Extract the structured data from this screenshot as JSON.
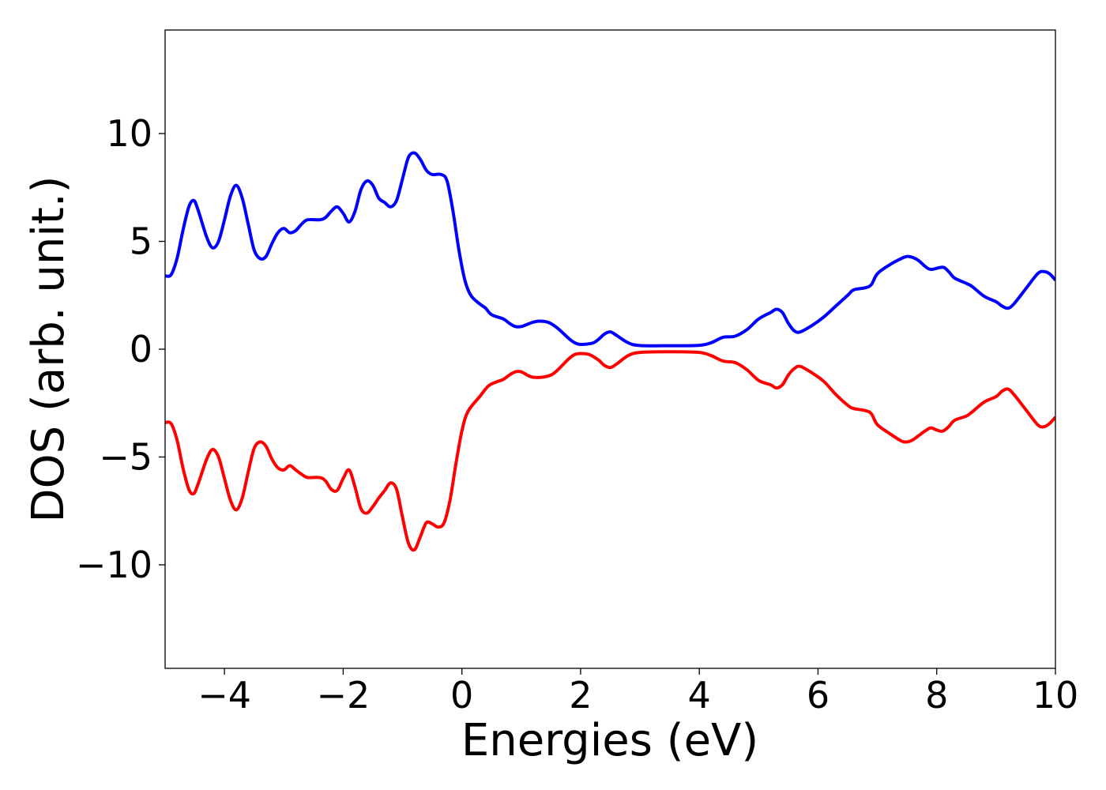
{
  "chart_data": {
    "type": "line",
    "title": "",
    "xlabel": "Energies (eV)",
    "ylabel": "DOS (arb. unit.)",
    "xlim": [
      -5,
      10
    ],
    "ylim": [
      -14.8,
      14.8
    ],
    "xticks": [
      -4,
      -2,
      0,
      2,
      4,
      6,
      8,
      10
    ],
    "xtick_labels": [
      "−4",
      "−2",
      "0",
      "2",
      "4",
      "6",
      "8",
      "10"
    ],
    "yticks": [
      10,
      5,
      0,
      -5,
      -10
    ],
    "ytick_labels": [
      "10",
      "5",
      "0",
      "−5",
      "−10"
    ],
    "grid": false,
    "legend": "none",
    "series": [
      {
        "color": "#0000ff",
        "points": [
          [
            -5.0,
            3.4
          ],
          [
            -4.9,
            3.45
          ],
          [
            -4.8,
            4.2
          ],
          [
            -4.7,
            5.5
          ],
          [
            -4.6,
            6.6
          ],
          [
            -4.52,
            6.9
          ],
          [
            -4.45,
            6.5
          ],
          [
            -4.3,
            5.2
          ],
          [
            -4.2,
            4.7
          ],
          [
            -4.1,
            5.0
          ],
          [
            -4.0,
            6.0
          ],
          [
            -3.9,
            7.1
          ],
          [
            -3.8,
            7.6
          ],
          [
            -3.7,
            7.0
          ],
          [
            -3.6,
            5.8
          ],
          [
            -3.5,
            4.6
          ],
          [
            -3.4,
            4.2
          ],
          [
            -3.3,
            4.3
          ],
          [
            -3.2,
            4.9
          ],
          [
            -3.1,
            5.4
          ],
          [
            -3.0,
            5.6
          ],
          [
            -2.9,
            5.4
          ],
          [
            -2.8,
            5.5
          ],
          [
            -2.7,
            5.8
          ],
          [
            -2.6,
            6.0
          ],
          [
            -2.4,
            6.0
          ],
          [
            -2.3,
            6.1
          ],
          [
            -2.2,
            6.4
          ],
          [
            -2.1,
            6.6
          ],
          [
            -2.0,
            6.3
          ],
          [
            -1.9,
            5.9
          ],
          [
            -1.8,
            6.4
          ],
          [
            -1.7,
            7.4
          ],
          [
            -1.6,
            7.8
          ],
          [
            -1.5,
            7.6
          ],
          [
            -1.4,
            7.0
          ],
          [
            -1.3,
            6.8
          ],
          [
            -1.2,
            6.6
          ],
          [
            -1.1,
            6.9
          ],
          [
            -1.0,
            7.9
          ],
          [
            -0.9,
            8.9
          ],
          [
            -0.8,
            9.1
          ],
          [
            -0.7,
            8.8
          ],
          [
            -0.6,
            8.3
          ],
          [
            -0.5,
            8.1
          ],
          [
            -0.35,
            8.1
          ],
          [
            -0.25,
            7.8
          ],
          [
            -0.15,
            6.4
          ],
          [
            -0.05,
            4.6
          ],
          [
            0.05,
            3.2
          ],
          [
            0.15,
            2.5
          ],
          [
            0.3,
            2.1
          ],
          [
            0.4,
            1.9
          ],
          [
            0.5,
            1.6
          ],
          [
            0.7,
            1.4
          ],
          [
            0.8,
            1.2
          ],
          [
            0.9,
            1.05
          ],
          [
            1.0,
            1.05
          ],
          [
            1.1,
            1.15
          ],
          [
            1.2,
            1.25
          ],
          [
            1.3,
            1.3
          ],
          [
            1.45,
            1.25
          ],
          [
            1.6,
            1.0
          ],
          [
            1.8,
            0.5
          ],
          [
            1.9,
            0.3
          ],
          [
            2.0,
            0.22
          ],
          [
            2.2,
            0.28
          ],
          [
            2.3,
            0.45
          ],
          [
            2.4,
            0.7
          ],
          [
            2.5,
            0.8
          ],
          [
            2.6,
            0.65
          ],
          [
            2.8,
            0.3
          ],
          [
            3.0,
            0.17
          ],
          [
            3.5,
            0.16
          ],
          [
            4.0,
            0.18
          ],
          [
            4.2,
            0.3
          ],
          [
            4.4,
            0.55
          ],
          [
            4.6,
            0.6
          ],
          [
            4.8,
            0.9
          ],
          [
            5.0,
            1.4
          ],
          [
            5.2,
            1.7
          ],
          [
            5.3,
            1.85
          ],
          [
            5.4,
            1.7
          ],
          [
            5.5,
            1.2
          ],
          [
            5.6,
            0.85
          ],
          [
            5.7,
            0.8
          ],
          [
            5.9,
            1.1
          ],
          [
            6.1,
            1.5
          ],
          [
            6.3,
            2.0
          ],
          [
            6.5,
            2.5
          ],
          [
            6.6,
            2.75
          ],
          [
            6.8,
            2.85
          ],
          [
            6.9,
            3.0
          ],
          [
            7.0,
            3.5
          ],
          [
            7.2,
            3.9
          ],
          [
            7.4,
            4.2
          ],
          [
            7.5,
            4.3
          ],
          [
            7.6,
            4.25
          ],
          [
            7.7,
            4.1
          ],
          [
            7.8,
            3.85
          ],
          [
            7.9,
            3.7
          ],
          [
            8.1,
            3.8
          ],
          [
            8.2,
            3.6
          ],
          [
            8.3,
            3.3
          ],
          [
            8.5,
            3.05
          ],
          [
            8.6,
            2.9
          ],
          [
            8.8,
            2.45
          ],
          [
            9.0,
            2.2
          ],
          [
            9.1,
            2.0
          ],
          [
            9.2,
            1.9
          ],
          [
            9.3,
            2.1
          ],
          [
            9.5,
            2.8
          ],
          [
            9.7,
            3.5
          ],
          [
            9.8,
            3.6
          ],
          [
            9.9,
            3.5
          ],
          [
            10.0,
            3.2
          ]
        ]
      },
      {
        "color": "#ff0000",
        "points": [
          [
            -5.0,
            -3.4
          ],
          [
            -4.9,
            -3.45
          ],
          [
            -4.8,
            -4.2
          ],
          [
            -4.7,
            -5.5
          ],
          [
            -4.6,
            -6.5
          ],
          [
            -4.52,
            -6.7
          ],
          [
            -4.45,
            -6.3
          ],
          [
            -4.3,
            -5.1
          ],
          [
            -4.2,
            -4.65
          ],
          [
            -4.1,
            -5.0
          ],
          [
            -4.0,
            -6.0
          ],
          [
            -3.9,
            -7.0
          ],
          [
            -3.8,
            -7.45
          ],
          [
            -3.7,
            -6.9
          ],
          [
            -3.6,
            -5.7
          ],
          [
            -3.5,
            -4.6
          ],
          [
            -3.4,
            -4.3
          ],
          [
            -3.3,
            -4.5
          ],
          [
            -3.2,
            -5.1
          ],
          [
            -3.1,
            -5.5
          ],
          [
            -3.0,
            -5.6
          ],
          [
            -2.9,
            -5.4
          ],
          [
            -2.8,
            -5.6
          ],
          [
            -2.7,
            -5.8
          ],
          [
            -2.6,
            -5.95
          ],
          [
            -2.4,
            -5.95
          ],
          [
            -2.3,
            -6.1
          ],
          [
            -2.2,
            -6.5
          ],
          [
            -2.1,
            -6.55
          ],
          [
            -2.0,
            -6.0
          ],
          [
            -1.9,
            -5.6
          ],
          [
            -1.8,
            -6.4
          ],
          [
            -1.7,
            -7.4
          ],
          [
            -1.6,
            -7.6
          ],
          [
            -1.5,
            -7.3
          ],
          [
            -1.4,
            -6.9
          ],
          [
            -1.3,
            -6.55
          ],
          [
            -1.2,
            -6.2
          ],
          [
            -1.1,
            -6.5
          ],
          [
            -1.0,
            -7.8
          ],
          [
            -0.9,
            -9.0
          ],
          [
            -0.8,
            -9.3
          ],
          [
            -0.7,
            -8.7
          ],
          [
            -0.6,
            -8.05
          ],
          [
            -0.5,
            -8.1
          ],
          [
            -0.4,
            -8.25
          ],
          [
            -0.3,
            -8.05
          ],
          [
            -0.2,
            -7.0
          ],
          [
            -0.1,
            -5.3
          ],
          [
            0.0,
            -3.8
          ],
          [
            0.1,
            -2.9
          ],
          [
            0.3,
            -2.2
          ],
          [
            0.45,
            -1.7
          ],
          [
            0.6,
            -1.5
          ],
          [
            0.7,
            -1.4
          ],
          [
            0.8,
            -1.2
          ],
          [
            0.9,
            -1.05
          ],
          [
            1.0,
            -1.05
          ],
          [
            1.1,
            -1.2
          ],
          [
            1.2,
            -1.3
          ],
          [
            1.35,
            -1.3
          ],
          [
            1.5,
            -1.2
          ],
          [
            1.6,
            -1.0
          ],
          [
            1.8,
            -0.45
          ],
          [
            1.9,
            -0.25
          ],
          [
            2.0,
            -0.2
          ],
          [
            2.15,
            -0.25
          ],
          [
            2.3,
            -0.5
          ],
          [
            2.4,
            -0.75
          ],
          [
            2.5,
            -0.85
          ],
          [
            2.6,
            -0.7
          ],
          [
            2.8,
            -0.3
          ],
          [
            3.0,
            -0.15
          ],
          [
            3.5,
            -0.12
          ],
          [
            4.0,
            -0.15
          ],
          [
            4.2,
            -0.3
          ],
          [
            4.4,
            -0.55
          ],
          [
            4.6,
            -0.62
          ],
          [
            4.8,
            -0.95
          ],
          [
            5.0,
            -1.45
          ],
          [
            5.2,
            -1.65
          ],
          [
            5.3,
            -1.8
          ],
          [
            5.4,
            -1.65
          ],
          [
            5.5,
            -1.2
          ],
          [
            5.6,
            -0.9
          ],
          [
            5.7,
            -0.8
          ],
          [
            5.9,
            -1.1
          ],
          [
            6.1,
            -1.5
          ],
          [
            6.3,
            -2.1
          ],
          [
            6.5,
            -2.6
          ],
          [
            6.6,
            -2.75
          ],
          [
            6.8,
            -2.85
          ],
          [
            6.9,
            -3.0
          ],
          [
            7.0,
            -3.5
          ],
          [
            7.2,
            -3.9
          ],
          [
            7.4,
            -4.25
          ],
          [
            7.5,
            -4.3
          ],
          [
            7.6,
            -4.2
          ],
          [
            7.7,
            -4.0
          ],
          [
            7.8,
            -3.8
          ],
          [
            7.9,
            -3.65
          ],
          [
            8.0,
            -3.75
          ],
          [
            8.1,
            -3.8
          ],
          [
            8.2,
            -3.6
          ],
          [
            8.3,
            -3.3
          ],
          [
            8.5,
            -3.1
          ],
          [
            8.6,
            -2.9
          ],
          [
            8.8,
            -2.45
          ],
          [
            9.0,
            -2.2
          ],
          [
            9.1,
            -1.95
          ],
          [
            9.2,
            -1.85
          ],
          [
            9.3,
            -2.1
          ],
          [
            9.5,
            -2.8
          ],
          [
            9.7,
            -3.5
          ],
          [
            9.8,
            -3.6
          ],
          [
            9.9,
            -3.45
          ],
          [
            10.0,
            -3.15
          ]
        ]
      }
    ]
  }
}
